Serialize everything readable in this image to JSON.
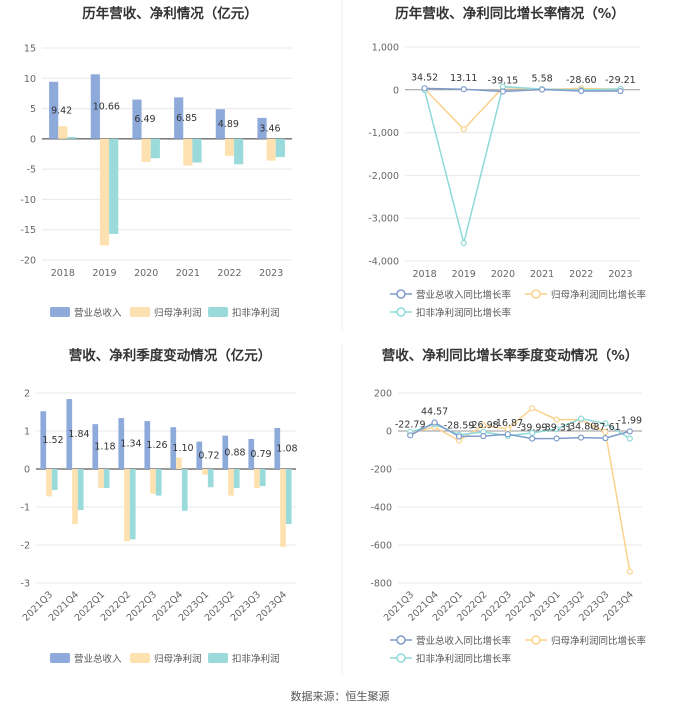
{
  "colors": {
    "revenue": "#8eaadb",
    "net_profit": "#fde1b1",
    "deducted_profit": "#9adada",
    "grid": "#e8e8e8",
    "axis": "#999999",
    "zero_line": "#333333"
  },
  "source": "数据来源：恒生聚源",
  "chart_data": [
    {
      "id": "c1",
      "type": "bar",
      "title": "历年营收、净利情况（亿元）",
      "categories": [
        "2018",
        "2019",
        "2020",
        "2021",
        "2022",
        "2023"
      ],
      "ylim": [
        -20,
        15
      ],
      "yticks": [
        -20,
        -15,
        -10,
        -5,
        0,
        5,
        10,
        15
      ],
      "series": [
        {
          "name": "营业总收入",
          "values": [
            9.42,
            10.66,
            6.49,
            6.85,
            4.89,
            3.46
          ]
        },
        {
          "name": "归母净利润",
          "values": [
            2.1,
            -17.6,
            -3.8,
            -4.4,
            -2.8,
            -3.6
          ]
        },
        {
          "name": "扣非净利润",
          "values": [
            0.3,
            -15.7,
            -3.2,
            -3.9,
            -4.2,
            -3.0
          ]
        }
      ],
      "labels": [
        "9.42",
        "10.66",
        "6.49",
        "6.85",
        "4.89",
        "3.46"
      ]
    },
    {
      "id": "c2",
      "type": "line",
      "title": "历年营收、净利同比增长率情况（%）",
      "categories": [
        "2018",
        "2019",
        "2020",
        "2021",
        "2022",
        "2023"
      ],
      "ylim": [
        -4000,
        1000
      ],
      "yticks": [
        -4000,
        -3000,
        -2000,
        -1000,
        0,
        1000
      ],
      "ytick_labels": [
        "-4,000",
        "-3,000",
        "-2,000",
        "-1,000",
        "0",
        "1,000"
      ],
      "series": [
        {
          "name": "营业总收入同比增长率",
          "values": [
            34.52,
            13.11,
            -39.15,
            5.58,
            -28.6,
            -29.21
          ]
        },
        {
          "name": "归母净利润同比增长率",
          "values": [
            20,
            -920,
            55,
            10,
            30,
            15
          ]
        },
        {
          "name": "扣非净利润同比增长率",
          "values": [
            -10,
            -3580,
            75,
            15,
            -5,
            20
          ]
        }
      ],
      "labels": [
        "34.52",
        "13.11",
        "-39.15",
        "5.58",
        "-28.60",
        "-29.21"
      ]
    },
    {
      "id": "c3",
      "type": "bar",
      "title": "营收、净利季度变动情况（亿元）",
      "categories": [
        "2021Q3",
        "2021Q4",
        "2022Q1",
        "2022Q2",
        "2022Q3",
        "2022Q4",
        "2023Q1",
        "2023Q2",
        "2023Q3",
        "2023Q4"
      ],
      "ylim": [
        -3,
        2
      ],
      "yticks": [
        -3,
        -2,
        -1,
        0,
        1,
        2
      ],
      "series": [
        {
          "name": "营业总收入",
          "values": [
            1.52,
            1.84,
            1.18,
            1.34,
            1.26,
            1.1,
            0.72,
            0.88,
            0.79,
            1.08
          ]
        },
        {
          "name": "归母净利润",
          "values": [
            -0.72,
            -1.45,
            -0.5,
            -1.9,
            -0.65,
            0.3,
            -0.15,
            -0.7,
            -0.5,
            -2.05
          ]
        },
        {
          "name": "扣非净利润",
          "values": [
            -0.55,
            -1.08,
            -0.5,
            -1.85,
            -0.7,
            -1.1,
            -0.48,
            -0.5,
            -0.45,
            -1.45
          ]
        }
      ],
      "labels": [
        "1.52",
        "1.84",
        "1.18",
        "1.34",
        "1.26",
        "1.10",
        "0.72",
        "0.88",
        "0.79",
        "1.08"
      ]
    },
    {
      "id": "c4",
      "type": "line",
      "title": "营收、净利同比增长率季度变动情况（%）",
      "categories": [
        "2021Q3",
        "2021Q4",
        "2022Q1",
        "2022Q2",
        "2022Q3",
        "2022Q4",
        "2023Q1",
        "2023Q2",
        "2023Q3",
        "2023Q4"
      ],
      "ylim": [
        -800,
        200
      ],
      "yticks": [
        -800,
        -600,
        -400,
        -200,
        0,
        200
      ],
      "series": [
        {
          "name": "营业总收入同比增长率",
          "values": [
            -22.79,
            44.57,
            -28.59,
            -26.98,
            -16.87,
            -39.99,
            -39.31,
            -34.8,
            -37.61,
            -1.99
          ]
        },
        {
          "name": "归母净利润同比增长率",
          "values": [
            -10,
            20,
            -50,
            30,
            10,
            120,
            60,
            60,
            -5,
            -740
          ]
        },
        {
          "name": "扣非净利润同比增长率",
          "values": [
            -5,
            35,
            -20,
            -5,
            -25,
            -10,
            10,
            65,
            40,
            -40
          ]
        }
      ],
      "labels": [
        "-22.79",
        "44.57",
        "-28.59",
        "-26.98",
        "-16.87",
        "-39.99",
        "-39.31",
        "-34.80",
        "-37.61",
        "-1.99"
      ]
    }
  ]
}
